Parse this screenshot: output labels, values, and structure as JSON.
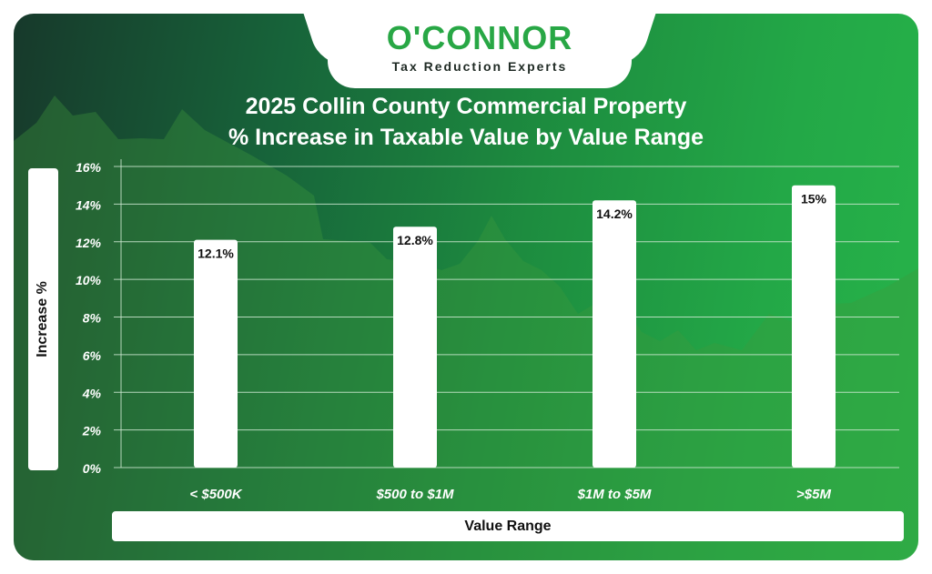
{
  "brand": {
    "logo_text": "O'CONNOR",
    "tagline": "Tax Reduction Experts"
  },
  "colors": {
    "accent_green": "#28a745",
    "bar_fill": "#ffffff",
    "gridline": "#cfe9d3"
  },
  "chart_data": {
    "type": "bar",
    "title_line1": "2025 Collin County Commercial Property",
    "title_line2": "% Increase in Taxable Value by Value Range",
    "xlabel": "Value Range",
    "ylabel": "Increase %",
    "categories": [
      "< $500K",
      "$500 to $1M",
      "$1M to $5M",
      ">$5M"
    ],
    "values": [
      12.1,
      12.8,
      14.2,
      15
    ],
    "value_labels": [
      "12.1%",
      "12.8%",
      "14.2%",
      "15%"
    ],
    "ylim": [
      0,
      16
    ],
    "y_ticks": [
      "0%",
      "2%",
      "4%",
      "6%",
      "8%",
      "10%",
      "12%",
      "14%",
      "16%"
    ],
    "grid": true
  }
}
